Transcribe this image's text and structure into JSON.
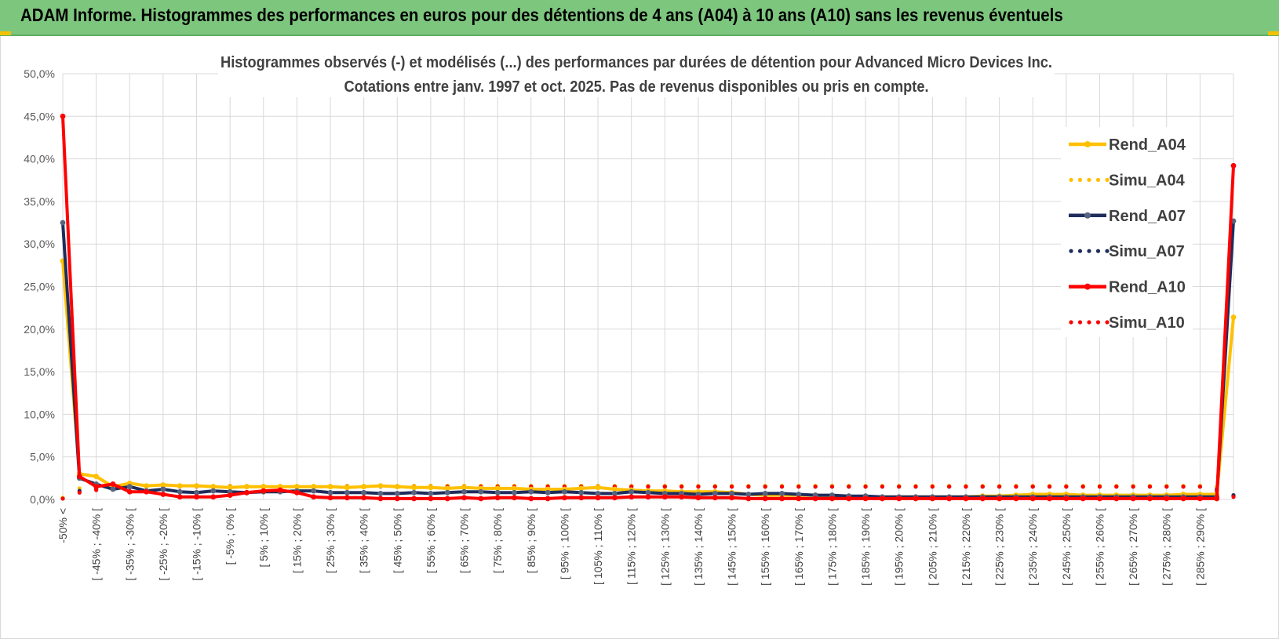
{
  "header": {
    "title": "ADAM Informe. Histogrammes des performances en euros pour des détentions de 4 ans (A04) à 10 ans (A10) sans les revenus éventuels"
  },
  "chart_data": {
    "type": "line",
    "title": "Histogrammes observés (-) et modélisés (...) des performances par durées de détention pour Advanced Micro Devices Inc.",
    "subtitle": "Cotations entre janv. 1997 et oct. 2025. Pas de revenus disponibles ou pris en compte.",
    "ylim": [
      0,
      50
    ],
    "yticks": [
      "0,0%",
      "5,0%",
      "10,0%",
      "15,0%",
      "20,0%",
      "25,0%",
      "30,0%",
      "35,0%",
      "40,0%",
      "45,0%",
      "50,0%"
    ],
    "grid": true,
    "legend_position": "right",
    "x_tick_labels": [
      "-50% <",
      "[ -45% ; -40% [",
      "[ -35% ; -30% [",
      "[ -25% ; -20% [",
      "[ -15% ; -10% [",
      "[ -5% ; 0% [",
      "[ 5% ; 10% [",
      "[ 15% ; 20% [",
      "[ 25% ; 30% [",
      "[ 35% ; 40% [",
      "[ 45% ; 50% [",
      "[ 55% ; 60% [",
      "[ 65% ; 70% [",
      "[ 75% ; 80% [",
      "[ 85% ; 90% [",
      "[ 95% ; 100% [",
      "[ 105% ; 110% [",
      "[ 115% ; 120% [",
      "[ 125% ; 130% [",
      "[ 135% ; 140% [",
      "[ 145% ; 150% [",
      "[ 155% ; 160% [",
      "[ 165% ; 170% [",
      "[ 175% ; 180% [",
      "[ 185% ; 190% [",
      "[ 195% ; 200% [",
      "[ 205% ; 210% [",
      "[ 215% ; 220% [",
      "[ 225% ; 230% [",
      "[ 235% ; 240% [",
      "[ 245% ; 250% [",
      "[ 255% ; 260% [",
      "[ 265% ; 270% [",
      "[ 275% ; 280% [",
      "[ 285% ; 290% ["
    ],
    "n_points": 71,
    "series": [
      {
        "name": "Rend_A04",
        "color": "#ffc000",
        "style": "solid",
        "values": [
          28.0,
          3.0,
          2.7,
          1.5,
          1.9,
          1.6,
          1.7,
          1.6,
          1.6,
          1.5,
          1.4,
          1.5,
          1.5,
          1.5,
          1.5,
          1.5,
          1.5,
          1.4,
          1.5,
          1.6,
          1.5,
          1.4,
          1.4,
          1.3,
          1.4,
          1.3,
          1.3,
          1.3,
          1.2,
          1.2,
          1.2,
          1.3,
          1.4,
          1.2,
          1.1,
          1.0,
          1.0,
          0.9,
          0.9,
          0.9,
          0.8,
          0.6,
          0.5,
          0.5,
          0.5,
          0.5,
          0.4,
          0.4,
          0.3,
          0.3,
          0.3,
          0.3,
          0.3,
          0.3,
          0.3,
          0.4,
          0.4,
          0.5,
          0.6,
          0.6,
          0.6,
          0.5,
          0.5,
          0.5,
          0.5,
          0.5,
          0.5,
          0.6,
          0.6,
          0.6,
          21.4
        ]
      },
      {
        "name": "Simu_A04",
        "color": "#ffc000",
        "style": "dotted",
        "values": [
          0.2,
          1.3,
          1.5,
          1.6,
          1.6,
          1.6,
          1.6,
          1.6,
          1.6,
          1.6,
          1.6,
          1.6,
          1.6,
          1.6,
          1.6,
          1.6,
          1.6,
          1.6,
          1.6,
          1.6,
          1.6,
          1.6,
          1.6,
          1.6,
          1.6,
          1.6,
          1.6,
          1.6,
          1.6,
          1.6,
          1.6,
          1.6,
          1.6,
          1.6,
          1.6,
          1.6,
          1.6,
          1.6,
          1.6,
          1.6,
          1.6,
          1.6,
          1.6,
          1.6,
          1.6,
          1.6,
          1.6,
          1.6,
          1.6,
          1.6,
          1.6,
          1.6,
          1.6,
          1.6,
          1.6,
          1.6,
          1.6,
          1.6,
          1.6,
          1.6,
          1.6,
          1.6,
          1.6,
          1.6,
          1.6,
          1.6,
          1.6,
          1.6,
          1.6,
          1.5,
          0.5
        ]
      },
      {
        "name": "Rend_A07",
        "color": "#1f2d5c",
        "style": "solid",
        "values": [
          32.5,
          2.5,
          1.8,
          1.2,
          1.5,
          1.0,
          1.2,
          0.9,
          0.8,
          1.0,
          0.9,
          0.8,
          0.9,
          0.9,
          1.0,
          1.0,
          0.8,
          0.8,
          0.8,
          0.7,
          0.7,
          0.8,
          0.7,
          0.8,
          0.9,
          0.9,
          0.8,
          0.8,
          0.9,
          0.8,
          0.9,
          0.8,
          0.7,
          0.7,
          0.9,
          0.8,
          0.7,
          0.7,
          0.6,
          0.7,
          0.7,
          0.6,
          0.7,
          0.7,
          0.6,
          0.5,
          0.5,
          0.4,
          0.4,
          0.3,
          0.3,
          0.3,
          0.3,
          0.3,
          0.3,
          0.3,
          0.3,
          0.3,
          0.3,
          0.3,
          0.3,
          0.3,
          0.3,
          0.3,
          0.3,
          0.3,
          0.3,
          0.3,
          0.3,
          0.3,
          32.7
        ]
      },
      {
        "name": "Simu_A07",
        "color": "#1f2d5c",
        "style": "dotted",
        "values": [
          0.1,
          1.0,
          1.2,
          1.4,
          1.5,
          1.5,
          1.5,
          1.5,
          1.5,
          1.5,
          1.5,
          1.5,
          1.5,
          1.5,
          1.5,
          1.5,
          1.5,
          1.5,
          1.5,
          1.5,
          1.5,
          1.5,
          1.5,
          1.5,
          1.5,
          1.5,
          1.5,
          1.5,
          1.5,
          1.5,
          1.5,
          1.5,
          1.5,
          1.5,
          1.5,
          1.5,
          1.5,
          1.5,
          1.5,
          1.5,
          1.5,
          1.5,
          1.5,
          1.5,
          1.5,
          1.5,
          1.5,
          1.5,
          1.5,
          1.5,
          1.5,
          1.5,
          1.5,
          1.5,
          1.5,
          1.5,
          1.5,
          1.5,
          1.5,
          1.5,
          1.5,
          1.5,
          1.5,
          1.5,
          1.5,
          1.5,
          1.5,
          1.5,
          1.5,
          1.2,
          0.5
        ]
      },
      {
        "name": "Rend_A10",
        "color": "#ff0000",
        "style": "solid",
        "values": [
          45.0,
          2.7,
          1.5,
          1.8,
          0.9,
          0.9,
          0.6,
          0.3,
          0.3,
          0.3,
          0.5,
          0.8,
          1.0,
          1.1,
          0.8,
          0.3,
          0.2,
          0.2,
          0.2,
          0.1,
          0.1,
          0.1,
          0.1,
          0.1,
          0.2,
          0.1,
          0.2,
          0.2,
          0.1,
          0.1,
          0.2,
          0.2,
          0.2,
          0.2,
          0.3,
          0.3,
          0.3,
          0.3,
          0.2,
          0.2,
          0.2,
          0.1,
          0.1,
          0.1,
          0.1,
          0.1,
          0.1,
          0.1,
          0.1,
          0.1,
          0.1,
          0.1,
          0.1,
          0.1,
          0.1,
          0.1,
          0.1,
          0.1,
          0.1,
          0.1,
          0.1,
          0.1,
          0.1,
          0.1,
          0.1,
          0.1,
          0.1,
          0.1,
          0.1,
          0.1,
          39.2
        ]
      },
      {
        "name": "Simu_A10",
        "color": "#ff0000",
        "style": "dotted",
        "values": [
          0.1,
          0.8,
          1.1,
          1.3,
          1.4,
          1.5,
          1.5,
          1.5,
          1.5,
          1.5,
          1.5,
          1.5,
          1.5,
          1.5,
          1.5,
          1.5,
          1.5,
          1.5,
          1.5,
          1.5,
          1.5,
          1.5,
          1.5,
          1.5,
          1.5,
          1.5,
          1.5,
          1.5,
          1.5,
          1.5,
          1.5,
          1.5,
          1.5,
          1.5,
          1.5,
          1.5,
          1.5,
          1.5,
          1.5,
          1.5,
          1.5,
          1.5,
          1.5,
          1.5,
          1.5,
          1.5,
          1.5,
          1.5,
          1.5,
          1.5,
          1.5,
          1.5,
          1.5,
          1.5,
          1.5,
          1.5,
          1.5,
          1.5,
          1.5,
          1.5,
          1.5,
          1.5,
          1.5,
          1.5,
          1.5,
          1.5,
          1.5,
          1.5,
          1.5,
          1.0,
          0.3
        ]
      }
    ]
  }
}
